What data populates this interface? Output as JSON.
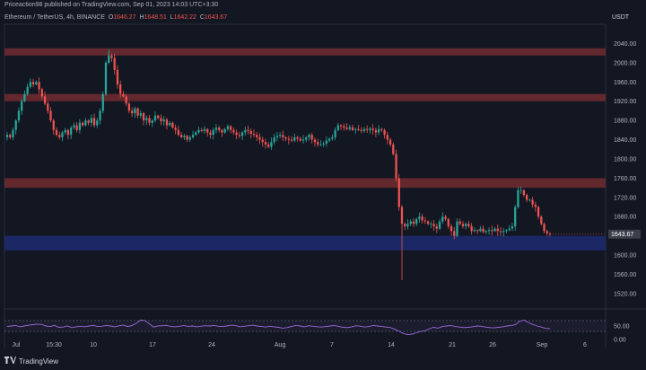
{
  "header": {
    "publisher": "Priceaction98 published on TradingView.com, Sep 01, 2023 14:03 UTC+3:30",
    "symbol": "Ethereum / TetherUS, 4h, BINANCE",
    "o_label": "O",
    "o": "1646.27",
    "h_label": "H",
    "h": "1648.51",
    "l_label": "L",
    "l": "1642.22",
    "c_label": "C",
    "c": "1643.67",
    "currency": "USDT"
  },
  "footer": {
    "brand": "TradingView",
    "logo_icon": "tradingview-logo-icon"
  },
  "colors": {
    "background": "#131722",
    "up": "#26a69a",
    "down": "#ef5350",
    "resistance_zone": "#6b2a30",
    "support_zone": "#1e2a6e",
    "rsi_line": "#9c6ad8",
    "price_badge": "#3a3f4b"
  },
  "chart_data": [
    {
      "type": "candlestick",
      "title": "Ethereum / TetherUS, 4h, BINANCE",
      "ylim": [
        1490,
        2080
      ],
      "y_ticks": [
        1520,
        1560,
        1600,
        1640,
        1680,
        1720,
        1760,
        1800,
        1840,
        1880,
        1920,
        1960,
        2000,
        2040
      ],
      "y_tick_labels": [
        "1520.00",
        "1560.00",
        "1600.00",
        "1640.00",
        "1680.00",
        "1720.00",
        "1760.00",
        "1800.00",
        "1840.00",
        "1880.00",
        "1920.00",
        "1960.00",
        "2000.00",
        "2040.00"
      ],
      "x_tick_labels": [
        "Jul",
        "15:30",
        "10",
        "17",
        "24",
        "Aug",
        "7",
        "14",
        "21",
        "26",
        "Sep",
        "6"
      ],
      "last_price": 1643.67,
      "last_price_label": "1643.67",
      "zones": [
        {
          "kind": "resistance",
          "low": 2015,
          "high": 2030
        },
        {
          "kind": "resistance",
          "low": 1920,
          "high": 1935
        },
        {
          "kind": "resistance",
          "low": 1740,
          "high": 1760
        },
        {
          "kind": "support",
          "low": 1610,
          "high": 1640
        }
      ],
      "close_path": [
        1850,
        1845,
        1860,
        1880,
        1900,
        1920,
        1935,
        1950,
        1960,
        1955,
        1960,
        1945,
        1930,
        1915,
        1900,
        1880,
        1860,
        1850,
        1845,
        1855,
        1860,
        1850,
        1865,
        1870,
        1860,
        1875,
        1870,
        1880,
        1875,
        1885,
        1870,
        1880,
        1900,
        1935,
        2000,
        2015,
        2010,
        1985,
        1955,
        1935,
        1930,
        1915,
        1900,
        1895,
        1905,
        1890,
        1895,
        1880,
        1885,
        1875,
        1880,
        1890,
        1885,
        1878,
        1882,
        1870,
        1875,
        1865,
        1860,
        1850,
        1845,
        1848,
        1840,
        1845,
        1850,
        1855,
        1860,
        1858,
        1862,
        1855,
        1850,
        1860,
        1865,
        1860,
        1855,
        1862,
        1868,
        1860,
        1855,
        1850,
        1848,
        1855,
        1860,
        1858,
        1852,
        1850,
        1845,
        1840,
        1835,
        1830,
        1825,
        1835,
        1845,
        1848,
        1850,
        1845,
        1842,
        1840,
        1838,
        1845,
        1842,
        1838,
        1840,
        1845,
        1850,
        1840,
        1835,
        1830,
        1830,
        1832,
        1838,
        1842,
        1845,
        1860,
        1870,
        1868,
        1865,
        1862,
        1866,
        1860,
        1862,
        1860,
        1858,
        1862,
        1860,
        1863,
        1860,
        1855,
        1862,
        1860,
        1850,
        1840,
        1830,
        1810,
        1760,
        1700,
        1665,
        1660,
        1665,
        1670,
        1665,
        1675,
        1680,
        1672,
        1670,
        1665,
        1665,
        1660,
        1655,
        1670,
        1680,
        1675,
        1660,
        1650,
        1640,
        1670,
        1665,
        1660,
        1665,
        1660,
        1650,
        1652,
        1650,
        1655,
        1648,
        1650,
        1652,
        1650,
        1655,
        1650,
        1648,
        1650,
        1652,
        1655,
        1660,
        1700,
        1735,
        1735,
        1725,
        1715,
        1715,
        1705,
        1700,
        1680,
        1665,
        1650,
        1645,
        1643.67
      ],
      "min_wick": 1548,
      "max_wick": 2028
    },
    {
      "type": "line",
      "title": "",
      "ylim": [
        0,
        100
      ],
      "y_ticks": [
        0,
        50
      ],
      "y_tick_labels": [
        "0.00",
        "50.00"
      ],
      "guides": [
        30,
        70
      ],
      "series": [
        {
          "values": [
            48,
            50,
            52,
            47,
            50,
            53,
            55,
            57,
            56,
            50,
            48,
            52,
            45,
            46,
            50,
            44,
            47,
            49,
            47,
            50,
            52,
            48,
            49,
            52,
            50,
            47,
            51,
            53,
            48,
            52,
            60,
            72,
            70,
            58,
            46,
            50,
            51,
            52,
            48,
            47,
            49,
            52,
            48,
            50,
            47,
            49,
            51,
            50,
            52,
            49,
            48,
            50,
            53,
            52,
            47,
            49,
            51,
            53,
            50,
            48,
            46,
            49,
            47,
            45,
            42,
            44,
            48,
            52,
            50,
            47,
            51,
            49,
            47,
            46,
            48,
            50,
            52,
            48,
            45,
            44,
            47,
            51,
            49,
            46,
            48,
            52,
            50,
            48,
            46,
            44,
            38,
            30,
            22,
            18,
            20,
            25,
            30,
            32,
            40,
            45,
            42,
            48,
            50,
            52,
            48,
            46,
            44,
            45,
            47,
            50,
            49,
            46,
            44,
            43,
            45,
            47,
            50,
            52,
            55,
            68,
            72,
            62,
            56,
            50,
            46,
            41,
            40
          ]
        }
      ]
    }
  ]
}
